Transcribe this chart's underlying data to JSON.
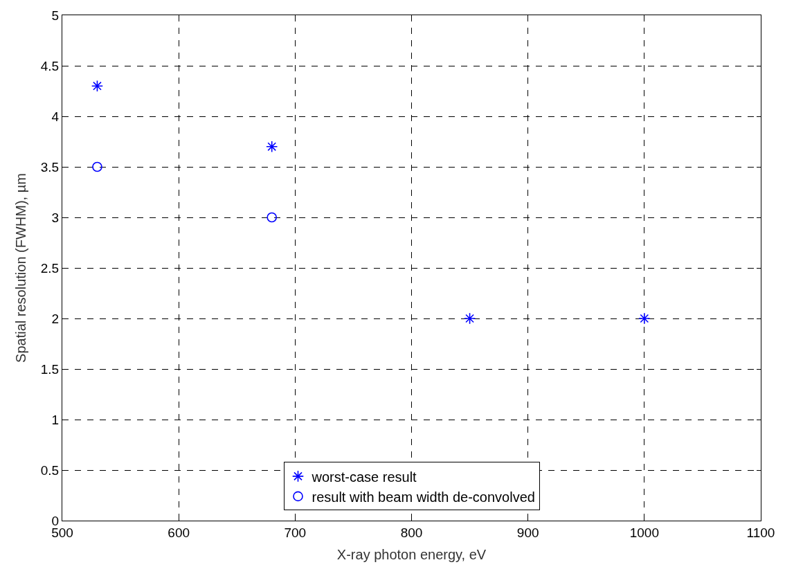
{
  "chart_data": {
    "type": "scatter",
    "xlabel": "X-ray photon energy, eV",
    "ylabel": "Spatial resolution (FWHM), µm",
    "xlim": [
      500,
      1100
    ],
    "xticks": [
      500,
      600,
      700,
      800,
      900,
      1000,
      1100
    ],
    "ylim": [
      0,
      5
    ],
    "yticks": [
      0,
      0.5,
      1,
      1.5,
      2,
      2.5,
      3,
      3.5,
      4,
      4.5,
      5
    ],
    "grid": true,
    "legend": "bottom",
    "series": [
      {
        "name": "worst-case result",
        "color": "#0000ff",
        "marker": "cross",
        "x": [
          530,
          680,
          850,
          1000
        ],
        "values": [
          4.3,
          3.7,
          2.0,
          2.0
        ]
      },
      {
        "name": "result with beam width de-convolved",
        "color": "#0000ff",
        "marker": "circle",
        "x": [
          530,
          680
        ],
        "values": [
          3.5,
          3.0
        ]
      }
    ]
  }
}
